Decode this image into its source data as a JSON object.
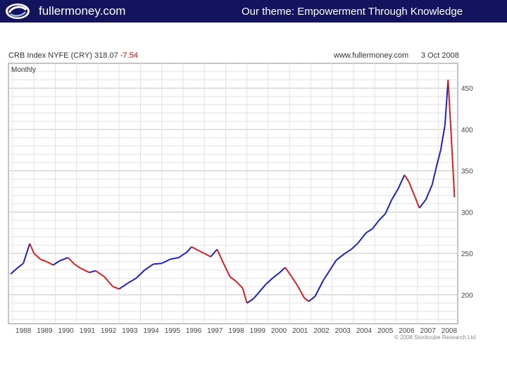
{
  "banner": {
    "site_name": "fullermoney.com",
    "theme": "Our theme: Empowerment Through Knowledge",
    "logo_icon": "swirl-logo-icon",
    "bg_color": "#13135e"
  },
  "chart_header": {
    "title": "CRB Index NYFE (CRY) 318.07",
    "change": "-7.54",
    "site": "www.fullermoney.com",
    "date": "3 Oct 2008",
    "period": "Monthly"
  },
  "copyright": "© 2008 Stockcube Research Ltd",
  "chart_data": {
    "type": "line",
    "title": "CRB Index NYFE (CRY) 318.07 -7.54",
    "subtitle": "Monthly",
    "ylim": [
      165,
      480
    ],
    "yticks": [
      200,
      250,
      300,
      350,
      400,
      450
    ],
    "xlim": [
      1987.8,
      2008.9
    ],
    "xticks": [
      "1988",
      "1989",
      "1990",
      "1991",
      "1992",
      "1993",
      "1994",
      "1995",
      "1996",
      "1997",
      "1998",
      "1999",
      "2000",
      "2001",
      "2002",
      "2003",
      "2004",
      "2005",
      "2006",
      "2007",
      "2008"
    ],
    "grid": true,
    "up_color": "#1f1fcf",
    "down_color": "#d42020",
    "series": [
      {
        "x": [
          1987.9,
          1988.2,
          1988.5,
          1988.8,
          1989.0,
          1989.3,
          1989.6,
          1989.9,
          1990.2,
          1990.6,
          1990.9,
          1991.2,
          1991.6,
          1991.9,
          1992.3,
          1992.7,
          1993.0,
          1993.4,
          1993.8,
          1994.2,
          1994.6,
          1995.0,
          1995.4,
          1995.8,
          1996.2,
          1996.4,
          1996.7,
          1997.0,
          1997.3,
          1997.6,
          1997.9,
          1998.2,
          1998.5,
          1998.8,
          1999.0,
          1999.3,
          1999.6,
          1999.9,
          2000.2,
          2000.5,
          2000.8,
          2001.1,
          2001.4,
          2001.7,
          2001.9,
          2002.2,
          2002.6,
          2002.9,
          2003.2,
          2003.6,
          2003.9,
          2004.2,
          2004.6,
          2004.9,
          2005.2,
          2005.5,
          2005.8,
          2006.1,
          2006.4,
          2006.6,
          2006.9,
          2007.1,
          2007.4,
          2007.7,
          2007.9,
          2008.1,
          2008.3,
          2008.45,
          2008.6,
          2008.75
        ],
        "y": [
          225,
          232,
          238,
          262,
          250,
          243,
          240,
          236,
          241,
          245,
          237,
          232,
          227,
          229,
          222,
          210,
          207,
          214,
          220,
          230,
          237,
          238,
          243,
          245,
          252,
          258,
          254,
          250,
          246,
          255,
          238,
          222,
          216,
          208,
          190,
          195,
          204,
          213,
          220,
          226,
          233,
          222,
          210,
          196,
          192,
          198,
          218,
          230,
          242,
          250,
          255,
          262,
          275,
          280,
          290,
          298,
          315,
          328,
          345,
          337,
          318,
          305,
          315,
          333,
          355,
          375,
          405,
          460,
          390,
          318
        ]
      }
    ]
  }
}
